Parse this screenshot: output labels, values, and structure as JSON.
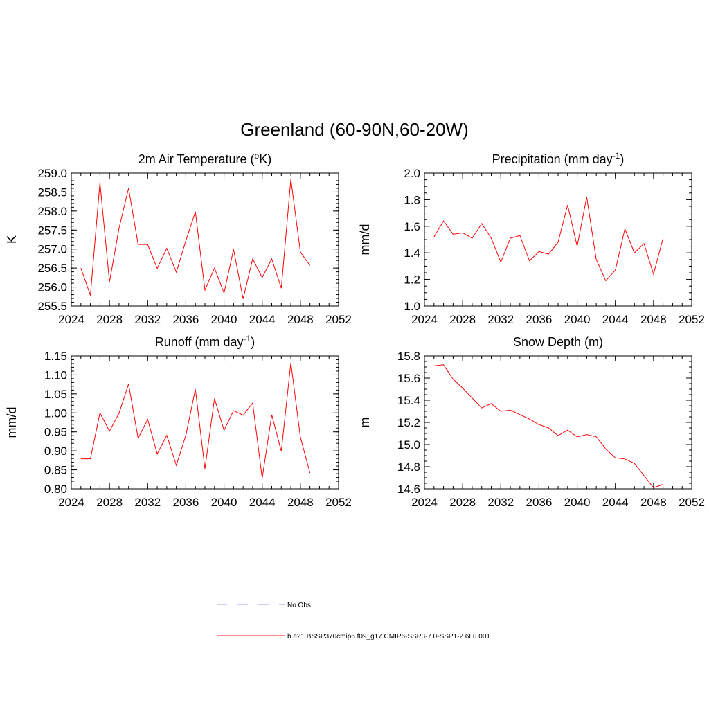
{
  "figure": {
    "title": "Greenland (60-90N,60-20W)"
  },
  "legend": [
    {
      "label": "No Obs",
      "color": "#aab0e6",
      "dashed": true
    },
    {
      "label": "b.e21.BSSP370cmip6.f09_g17.CMIP6-SSP3-7.0-SSP1-2.6Lu.001",
      "color": "#ff4040",
      "dashed": false
    }
  ],
  "chart_data": [
    {
      "type": "line",
      "title": "2m Air Temperature (°K)",
      "title_parts": [
        "2m Air Temperature (",
        "o",
        "K)"
      ],
      "ylabel": "K",
      "xlim": [
        2024,
        2052
      ],
      "ylim": [
        255.5,
        259.0
      ],
      "xticks": [
        2024,
        2028,
        2032,
        2036,
        2040,
        2044,
        2048,
        2052
      ],
      "xtick_labels": [
        "2024",
        "2028",
        "2032",
        "2036",
        "2040",
        "2044",
        "2048",
        "2052"
      ],
      "yticks": [
        255.5,
        256.0,
        256.5,
        257.0,
        257.5,
        258.0,
        258.5,
        259.0
      ],
      "ytick_labels": [
        "255.5",
        "256.0",
        "256.5",
        "257.0",
        "257.5",
        "258.0",
        "258.5",
        "259.0"
      ],
      "x_minor_step": 1,
      "y_minor_step": 0.1,
      "color": "#ff0000",
      "x": [
        2025,
        2026,
        2027,
        2028,
        2029,
        2030,
        2031,
        2032,
        2033,
        2034,
        2035,
        2036,
        2037,
        2038,
        2039,
        2040,
        2041,
        2042,
        2043,
        2044,
        2045,
        2046,
        2047,
        2048,
        2049
      ],
      "values": [
        256.5,
        255.78,
        258.75,
        256.13,
        257.55,
        258.6,
        257.12,
        257.12,
        256.49,
        257.02,
        256.39,
        257.22,
        257.98,
        255.92,
        256.5,
        255.84,
        256.99,
        255.69,
        256.74,
        256.25,
        256.74,
        255.97,
        258.84,
        256.92,
        256.57
      ]
    },
    {
      "type": "line",
      "title": "Precipitation (mm day-1)",
      "title_parts": [
        "Precipitation (mm day",
        "-1",
        ")"
      ],
      "ylabel": "mm/d",
      "xlim": [
        2024,
        2052
      ],
      "ylim": [
        1.0,
        2.0
      ],
      "xticks": [
        2024,
        2028,
        2032,
        2036,
        2040,
        2044,
        2048,
        2052
      ],
      "xtick_labels": [
        "2024",
        "2028",
        "2032",
        "2036",
        "2040",
        "2044",
        "2048",
        "2052"
      ],
      "yticks": [
        1.0,
        1.2,
        1.4,
        1.6,
        1.8,
        2.0
      ],
      "ytick_labels": [
        "1.0",
        "1.2",
        "1.4",
        "1.6",
        "1.8",
        "2.0"
      ],
      "x_minor_step": 1,
      "y_minor_step": 0.05,
      "color": "#ff0000",
      "x": [
        2025,
        2026,
        2027,
        2028,
        2029,
        2030,
        2031,
        2032,
        2033,
        2034,
        2035,
        2036,
        2037,
        2038,
        2039,
        2040,
        2041,
        2042,
        2043,
        2044,
        2045,
        2046,
        2047,
        2048,
        2049
      ],
      "values": [
        1.52,
        1.64,
        1.54,
        1.55,
        1.51,
        1.62,
        1.51,
        1.33,
        1.51,
        1.53,
        1.34,
        1.41,
        1.39,
        1.48,
        1.76,
        1.45,
        1.82,
        1.35,
        1.19,
        1.27,
        1.58,
        1.4,
        1.47,
        1.24,
        1.51
      ]
    },
    {
      "type": "line",
      "title": "Runoff (mm day-1)",
      "title_parts": [
        "Runoff (mm day",
        "-1",
        ")"
      ],
      "ylabel": "mm/d",
      "xlim": [
        2024,
        2052
      ],
      "ylim": [
        0.8,
        1.15
      ],
      "xticks": [
        2024,
        2028,
        2032,
        2036,
        2040,
        2044,
        2048,
        2052
      ],
      "xtick_labels": [
        "2024",
        "2028",
        "2032",
        "2036",
        "2040",
        "2044",
        "2048",
        "2052"
      ],
      "yticks": [
        0.8,
        0.85,
        0.9,
        0.95,
        1.0,
        1.05,
        1.1,
        1.15
      ],
      "ytick_labels": [
        "0.80",
        "0.85",
        "0.90",
        "0.95",
        "1.00",
        "1.05",
        "1.10",
        "1.15"
      ],
      "x_minor_step": 1,
      "y_minor_step": 0.01,
      "color": "#ff0000",
      "x": [
        2025,
        2026,
        2027,
        2028,
        2029,
        2030,
        2031,
        2032,
        2033,
        2034,
        2035,
        2036,
        2037,
        2038,
        2039,
        2040,
        2041,
        2042,
        2043,
        2044,
        2045,
        2046,
        2047,
        2048,
        2049
      ],
      "values": [
        0.879,
        0.879,
        1.0,
        0.952,
        0.999,
        1.076,
        0.933,
        0.983,
        0.892,
        0.941,
        0.862,
        0.941,
        1.062,
        0.853,
        1.038,
        0.954,
        1.006,
        0.994,
        1.026,
        0.828,
        0.995,
        0.899,
        1.132,
        0.936,
        0.842
      ]
    },
    {
      "type": "line",
      "title": "Snow Depth (m)",
      "title_parts": [
        "Snow Depth (m)",
        "",
        ""
      ],
      "ylabel": "m",
      "xlim": [
        2024,
        2052
      ],
      "ylim": [
        14.6,
        15.8
      ],
      "xticks": [
        2024,
        2028,
        2032,
        2036,
        2040,
        2044,
        2048,
        2052
      ],
      "xtick_labels": [
        "2024",
        "2028",
        "2032",
        "2036",
        "2040",
        "2044",
        "2048",
        "2052"
      ],
      "yticks": [
        14.6,
        14.8,
        15.0,
        15.2,
        15.4,
        15.6,
        15.8
      ],
      "ytick_labels": [
        "14.6",
        "14.8",
        "15.0",
        "15.2",
        "15.4",
        "15.6",
        "15.8"
      ],
      "x_minor_step": 1,
      "y_minor_step": 0.05,
      "color": "#ff0000",
      "x": [
        2025,
        2026,
        2027,
        2028,
        2029,
        2030,
        2031,
        2032,
        2033,
        2034,
        2035,
        2036,
        2037,
        2038,
        2039,
        2040,
        2041,
        2042,
        2043,
        2044,
        2045,
        2046,
        2047,
        2048,
        2049
      ],
      "values": [
        15.71,
        15.72,
        15.59,
        15.51,
        15.42,
        15.33,
        15.37,
        15.3,
        15.31,
        15.27,
        15.23,
        15.18,
        15.15,
        15.08,
        15.13,
        15.07,
        15.09,
        15.07,
        14.96,
        14.88,
        14.87,
        14.83,
        14.72,
        14.61,
        14.64
      ]
    }
  ]
}
